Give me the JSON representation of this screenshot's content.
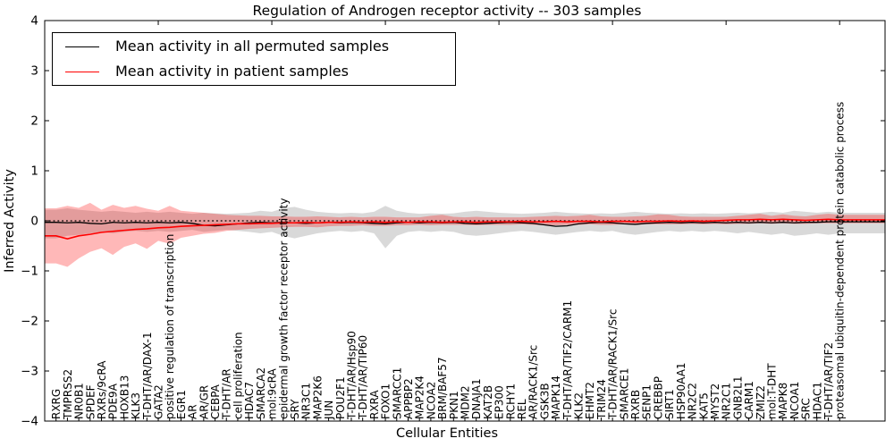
{
  "figure": {
    "title": "Regulation of Androgen receptor activity -- 303 samples",
    "xlabel": "Cellular Entities",
    "ylabel": "Inferred Activity"
  },
  "chart_data": {
    "type": "line",
    "title": "Regulation of Androgen receptor activity -- 303 samples",
    "xlabel": "Cellular Entities",
    "ylabel": "Inferred Activity",
    "ylim": [
      -4,
      4
    ],
    "yticks": [
      "4",
      "3",
      "2",
      "1",
      "0",
      "−1",
      "−2",
      "−3",
      "−4"
    ],
    "ytick_values": [
      4,
      3,
      2,
      1,
      0,
      -1,
      -2,
      -3,
      -4
    ],
    "xticks_top_values": [
      10,
      20,
      30,
      40,
      50,
      60,
      70
    ],
    "grid": false,
    "legend_position": "upper left",
    "zero_line": {
      "y": 0,
      "style": "dotted",
      "color": "#000000"
    },
    "legend": [
      {
        "label": "Mean activity in all permuted samples",
        "color": "#000000"
      },
      {
        "label": "Mean activity in patient samples",
        "color": "#ff0000"
      }
    ],
    "categories": [
      "RXRG",
      "TMPRSS2",
      "NR0B1",
      "SPDEF",
      "RXRs/9cRA",
      "PDE9A",
      "HOXB13",
      "KLK3",
      "T-DHT/AR/DAX-1",
      "GATA2",
      "positive regulation of transcription",
      "EGR1",
      "AR",
      "AR/GR",
      "CEBPA",
      "T-DHT/AR",
      "cell proliferation",
      "HDAC7",
      "SMARCA2",
      "mol:9cRA",
      "epidermal growth factor receptor activity",
      "SRY",
      "NR3C1",
      "MAP2K6",
      "JUN",
      "POU2F1",
      "T-DHT/AR/Hsp90",
      "T-DHT/AR/TIP60",
      "RXRA",
      "FOXO1",
      "SMARCC1",
      "APPBP2",
      "MAP2K4",
      "NCOA2",
      "BRM/BAF57",
      "PKN1",
      "MDM2",
      "DNAJA1",
      "KAT2B",
      "EP300",
      "RCHY1",
      "REL",
      "AR/RACK1/Src",
      "GSK3B",
      "MAPK14",
      "T-DHT/AR/TIF2/CARM1",
      "KLK2",
      "EHMT2",
      "TRIM24",
      "T-DHT/AR/RACK1/Src",
      "SMARCE1",
      "RXRB",
      "SENP1",
      "CREBBP",
      "SIRT1",
      "HSP90AA1",
      "NR2C2",
      "KAT5",
      "MYST2",
      "NR2C1",
      "GNB2L1",
      "CARM1",
      "ZMIZ2",
      "mol:T-DHT",
      "MAPK8",
      "NCOA1",
      "SRC",
      "HDAC1",
      "T-DHT/AR/TIF2",
      "proteasomal ubiquitin-dependent protein catabolic process"
    ],
    "series": [
      {
        "name": "Mean activity in all permuted samples",
        "color": "#000000",
        "band_color": "#808080",
        "band_opacity": 0.3,
        "values": [
          -0.03,
          -0.04,
          -0.03,
          -0.05,
          -0.06,
          -0.03,
          -0.04,
          -0.03,
          -0.04,
          -0.03,
          -0.04,
          -0.03,
          -0.05,
          -0.09,
          -0.1,
          -0.08,
          -0.06,
          -0.04,
          -0.03,
          -0.04,
          -0.03,
          -0.04,
          -0.05,
          -0.04,
          -0.03,
          -0.04,
          -0.03,
          -0.04,
          -0.05,
          -0.06,
          -0.04,
          -0.03,
          -0.04,
          -0.03,
          -0.04,
          -0.03,
          -0.05,
          -0.06,
          -0.05,
          -0.04,
          -0.03,
          -0.04,
          -0.05,
          -0.08,
          -0.11,
          -0.1,
          -0.06,
          -0.04,
          -0.03,
          -0.04,
          -0.06,
          -0.07,
          -0.05,
          -0.04,
          -0.03,
          -0.04,
          -0.03,
          -0.04,
          -0.03,
          -0.04,
          -0.03,
          -0.04,
          -0.03,
          -0.04,
          -0.03,
          -0.04,
          -0.03,
          -0.03,
          -0.02,
          -0.02
        ],
        "band_lower": [
          -0.35,
          -0.3,
          -0.28,
          -0.25,
          -0.22,
          -0.25,
          -0.22,
          -0.2,
          -0.22,
          -0.2,
          -0.22,
          -0.2,
          -0.18,
          -0.22,
          -0.2,
          -0.18,
          -0.2,
          -0.22,
          -0.25,
          -0.22,
          -0.3,
          -0.35,
          -0.3,
          -0.25,
          -0.22,
          -0.2,
          -0.22,
          -0.2,
          -0.25,
          -0.55,
          -0.3,
          -0.22,
          -0.2,
          -0.22,
          -0.2,
          -0.22,
          -0.28,
          -0.3,
          -0.28,
          -0.25,
          -0.22,
          -0.2,
          -0.22,
          -0.25,
          -0.28,
          -0.25,
          -0.22,
          -0.2,
          -0.22,
          -0.2,
          -0.25,
          -0.28,
          -0.25,
          -0.22,
          -0.2,
          -0.22,
          -0.2,
          -0.22,
          -0.2,
          -0.22,
          -0.25,
          -0.22,
          -0.25,
          -0.28,
          -0.25,
          -0.3,
          -0.28,
          -0.25,
          -0.28,
          -0.25
        ],
        "band_upper": [
          0.22,
          0.25,
          0.22,
          0.2,
          0.18,
          0.2,
          0.18,
          0.16,
          0.18,
          0.16,
          0.18,
          0.16,
          0.14,
          0.16,
          0.15,
          0.14,
          0.15,
          0.16,
          0.2,
          0.18,
          0.25,
          0.28,
          0.22,
          0.18,
          0.16,
          0.15,
          0.16,
          0.15,
          0.18,
          0.3,
          0.2,
          0.16,
          0.14,
          0.15,
          0.14,
          0.15,
          0.18,
          0.2,
          0.18,
          0.16,
          0.15,
          0.14,
          0.15,
          0.16,
          0.18,
          0.16,
          0.15,
          0.14,
          0.15,
          0.14,
          0.16,
          0.18,
          0.16,
          0.15,
          0.14,
          0.15,
          0.14,
          0.15,
          0.14,
          0.15,
          0.16,
          0.15,
          0.16,
          0.18,
          0.16,
          0.2,
          0.18,
          0.16,
          0.18,
          0.16
        ]
      },
      {
        "name": "Mean activity in patient samples",
        "color": "#ff0000",
        "band_color": "#ff0000",
        "band_opacity": 0.28,
        "values": [
          -0.3,
          -0.36,
          -0.3,
          -0.27,
          -0.23,
          -0.21,
          -0.19,
          -0.17,
          -0.16,
          -0.14,
          -0.13,
          -0.11,
          -0.1,
          -0.09,
          -0.08,
          -0.07,
          -0.06,
          -0.06,
          -0.05,
          -0.05,
          -0.04,
          -0.04,
          -0.03,
          -0.04,
          -0.03,
          -0.03,
          -0.02,
          -0.03,
          -0.02,
          -0.03,
          -0.02,
          -0.03,
          -0.02,
          -0.02,
          -0.03,
          -0.02,
          -0.02,
          -0.03,
          -0.02,
          -0.02,
          -0.02,
          -0.01,
          -0.02,
          -0.02,
          -0.01,
          -0.02,
          -0.01,
          -0.01,
          -0.02,
          -0.01,
          -0.01,
          -0.02,
          -0.01,
          -0.01,
          0.0,
          -0.01,
          0.0,
          -0.01,
          0.0,
          0.01,
          0.02,
          0.02,
          0.03,
          0.02,
          0.03,
          0.02,
          0.01,
          0.02,
          0.03,
          0.02
        ],
        "band_lower": [
          -0.85,
          -0.92,
          -0.75,
          -0.62,
          -0.55,
          -0.68,
          -0.52,
          -0.45,
          -0.56,
          -0.4,
          -0.46,
          -0.34,
          -0.3,
          -0.26,
          -0.24,
          -0.2,
          -0.18,
          -0.16,
          -0.15,
          -0.14,
          -0.13,
          -0.12,
          -0.12,
          -0.13,
          -0.11,
          -0.1,
          -0.1,
          -0.09,
          -0.1,
          -0.1,
          -0.09,
          -0.09,
          -0.08,
          -0.09,
          -0.08,
          -0.08,
          -0.08,
          -0.09,
          -0.08,
          -0.08,
          -0.08,
          -0.07,
          -0.08,
          -0.09,
          -0.09,
          -0.08,
          -0.08,
          -0.07,
          -0.08,
          -0.08,
          -0.07,
          -0.08,
          -0.07,
          -0.07,
          -0.07,
          -0.07,
          -0.06,
          -0.07,
          -0.06,
          -0.07,
          -0.06,
          -0.06,
          -0.05,
          -0.06,
          -0.05,
          -0.06,
          -0.06,
          -0.05,
          -0.05,
          -0.05
        ],
        "band_upper": [
          0.25,
          0.3,
          0.26,
          0.36,
          0.22,
          0.32,
          0.26,
          0.3,
          0.24,
          0.2,
          0.3,
          0.2,
          0.18,
          0.16,
          0.14,
          0.12,
          0.11,
          0.1,
          0.1,
          0.09,
          0.09,
          0.08,
          0.08,
          0.09,
          0.08,
          0.07,
          0.08,
          0.07,
          0.08,
          0.08,
          0.07,
          0.07,
          0.07,
          0.1,
          0.12,
          0.08,
          0.07,
          0.08,
          0.07,
          0.07,
          0.07,
          0.07,
          0.08,
          0.09,
          0.1,
          0.09,
          0.1,
          0.12,
          0.09,
          0.08,
          0.08,
          0.09,
          0.1,
          0.13,
          0.12,
          0.09,
          0.08,
          0.08,
          0.08,
          0.08,
          0.1,
          0.12,
          0.14,
          0.1,
          0.13,
          0.1,
          0.09,
          0.12,
          0.14,
          0.12
        ]
      }
    ]
  }
}
